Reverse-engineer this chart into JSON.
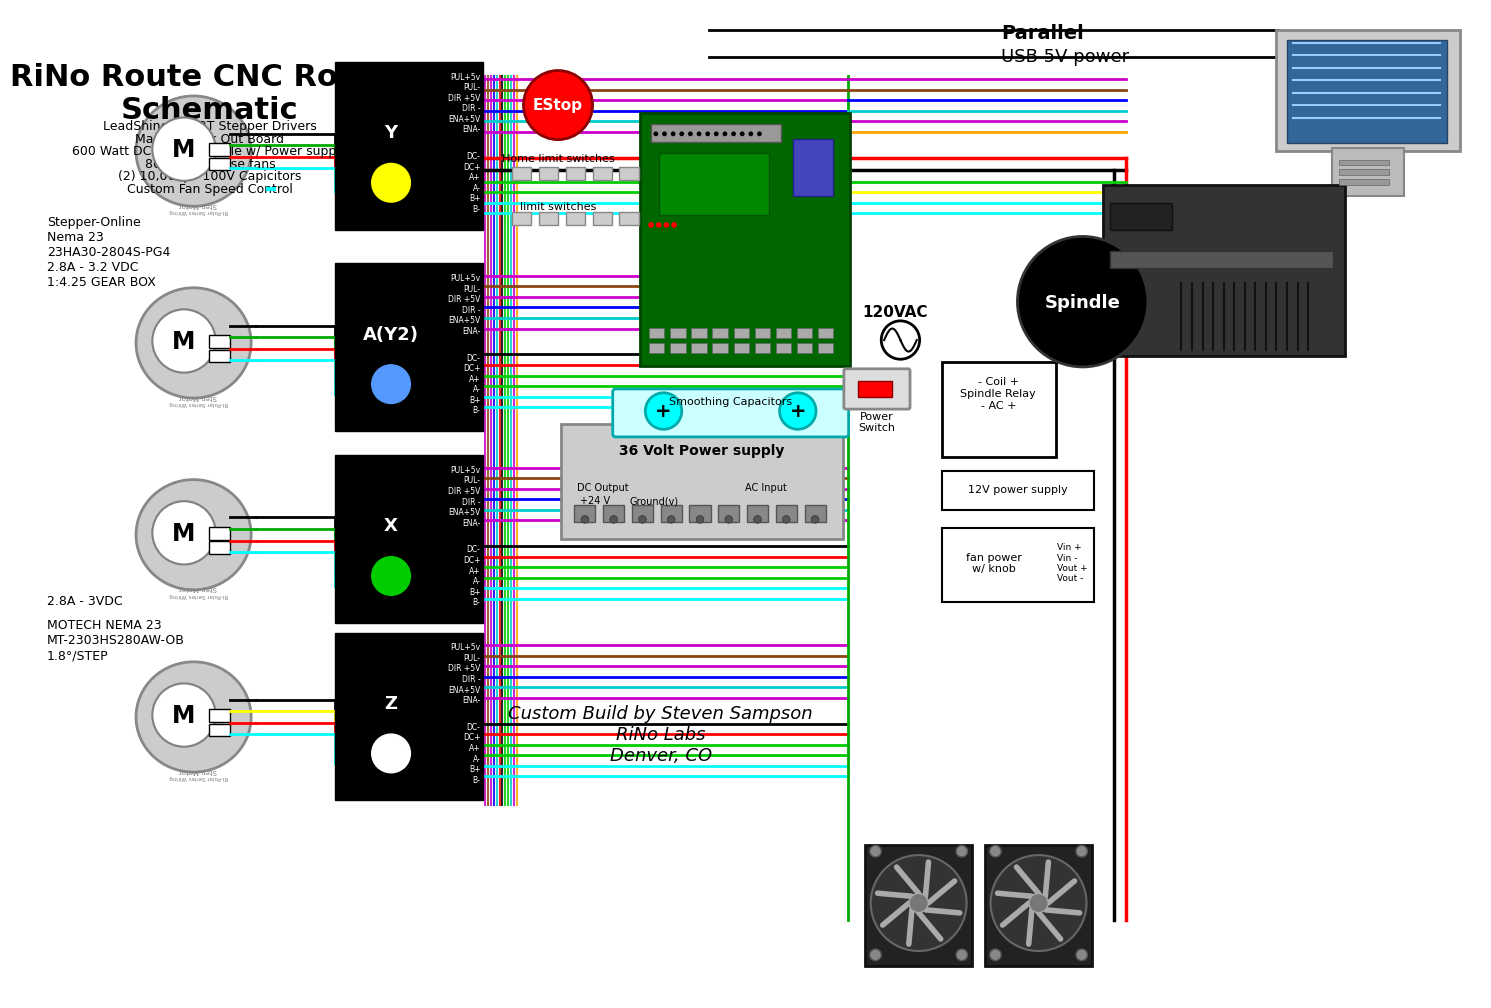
{
  "title": "RiNo Route CNC Router\nSchematic",
  "subtitle_lines": [
    "LeadShine M542T Stepper Drivers",
    "Mach3 Break Out Board",
    "600 Watt DC Brush Spindle w/ Power supply",
    "80mm cpu case fans",
    "(2) 10,000μF 100V Capicitors",
    "Custom Fan Speed Control"
  ],
  "motor_label_top": "Stepper-Online\nNema 23\n23HA30-2804S-PG4\n2.8A - 3.2 VDC\n1:4.25 GEAR BOX",
  "motor_label_bot": "MOTECH NEMA 23\nMT-2303HS280AW-OB\n1.8°/STEP",
  "driver_labels": [
    "Y",
    "A(Y2)",
    "X",
    "Z"
  ],
  "driver_colors": [
    "yellow",
    "#5599ff",
    "#00cc00",
    "white"
  ],
  "parallel_label": "Parallel",
  "usb_label": "USB 5V power",
  "bg_color": "white",
  "custom_build_text": "Custom Build by Steven Sampson\nRiNo Labs\nDenver, CO",
  "spindle_label": "Spindle",
  "power_supply_label": "36 Volt Power supply",
  "smoothing_cap_label": "Smoothing Capacitors",
  "estop_label": "EStop",
  "home_limit_label": "Home limit switches",
  "limit_label": "limit switches",
  "vac_label": "120VAC",
  "power_switch_label": "Power\nSwitch",
  "spindle_relay_label": "- Coil +\nSpindle Relay\n- AC +",
  "power_supply_12v_label": "12V power supply",
  "fan_power_label": "fan power\nw/ knob",
  "fan_vin_vout": "Vin +\nVin -\nVout +\nVout -",
  "dc_output_label": "DC Output",
  "ac_input_label": "AC Input",
  "plus24v_label": "+24 V",
  "ground_label": "Ground(v)",
  "stepmotor_label": "Step Motor",
  "bipolar_label": "Bi-Polar Series Wiring",
  "x28a_label": "2.8A - 3VDC"
}
